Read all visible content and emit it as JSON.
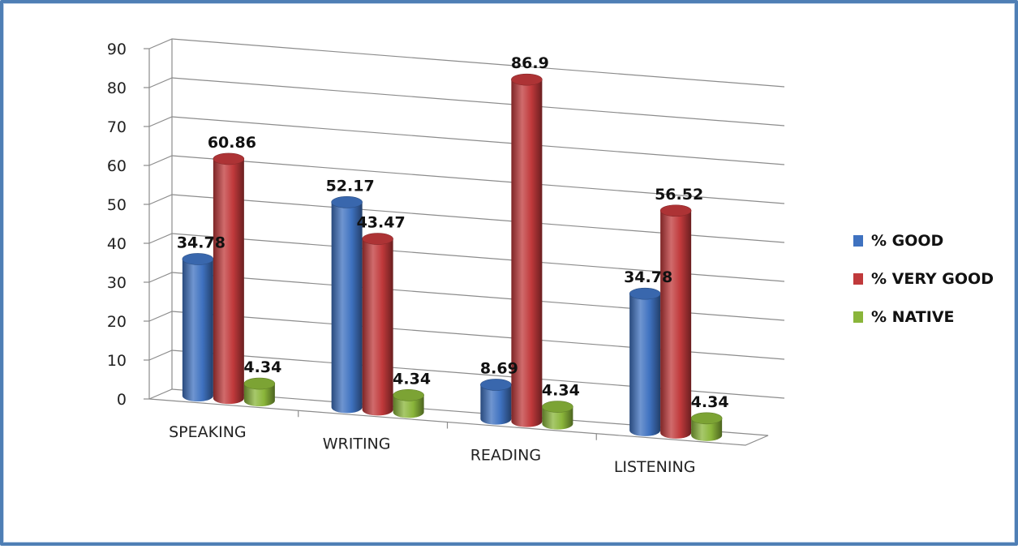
{
  "chart_data": {
    "type": "bar",
    "style": "3d-cylinder",
    "categories": [
      "SPEAKING",
      "WRITING",
      "READING",
      "LISTENING"
    ],
    "series": [
      {
        "name": "% GOOD",
        "color": "#3f72c0",
        "values": [
          34.78,
          52.17,
          8.69,
          34.78
        ]
      },
      {
        "name": "% VERY GOOD",
        "color": "#c0393b",
        "values": [
          60.86,
          43.47,
          86.9,
          56.52
        ]
      },
      {
        "name": "% NATIVE",
        "color": "#8ab53a",
        "values": [
          4.34,
          4.34,
          4.34,
          4.34
        ]
      }
    ],
    "data_labels": [
      [
        "34.78",
        "60.86",
        "4.34"
      ],
      [
        "52.17",
        "43.47",
        "4.34"
      ],
      [
        "8.69",
        "86.9",
        "4.34"
      ],
      [
        "34.78",
        "56.52",
        "4.34"
      ]
    ],
    "y_ticks": [
      "0",
      "10",
      "20",
      "30",
      "40",
      "50",
      "60",
      "70",
      "80",
      "90"
    ],
    "ylim": [
      0,
      90
    ],
    "grid": true,
    "legend_position": "right",
    "title": "",
    "xlabel": "",
    "ylabel": ""
  }
}
